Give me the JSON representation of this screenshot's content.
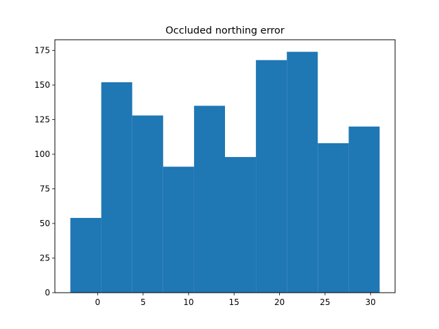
{
  "chart_data": {
    "type": "bar",
    "title": "Occluded northing error",
    "xlabel": "",
    "ylabel": "",
    "bin_edges": [
      -3,
      0.4,
      3.8,
      7.2,
      10.6,
      14.0,
      17.4,
      20.8,
      24.2,
      27.6,
      31.0
    ],
    "values": [
      54,
      152,
      128,
      91,
      135,
      98,
      168,
      174,
      108,
      120
    ],
    "xlim": [
      -4.7,
      32.7
    ],
    "ylim": [
      0,
      182.7
    ],
    "xticks": [
      0,
      5,
      10,
      15,
      20,
      25,
      30
    ],
    "yticks": [
      0,
      25,
      50,
      75,
      100,
      125,
      150,
      175
    ],
    "bar_color": "#1f77b4",
    "grid": false
  }
}
